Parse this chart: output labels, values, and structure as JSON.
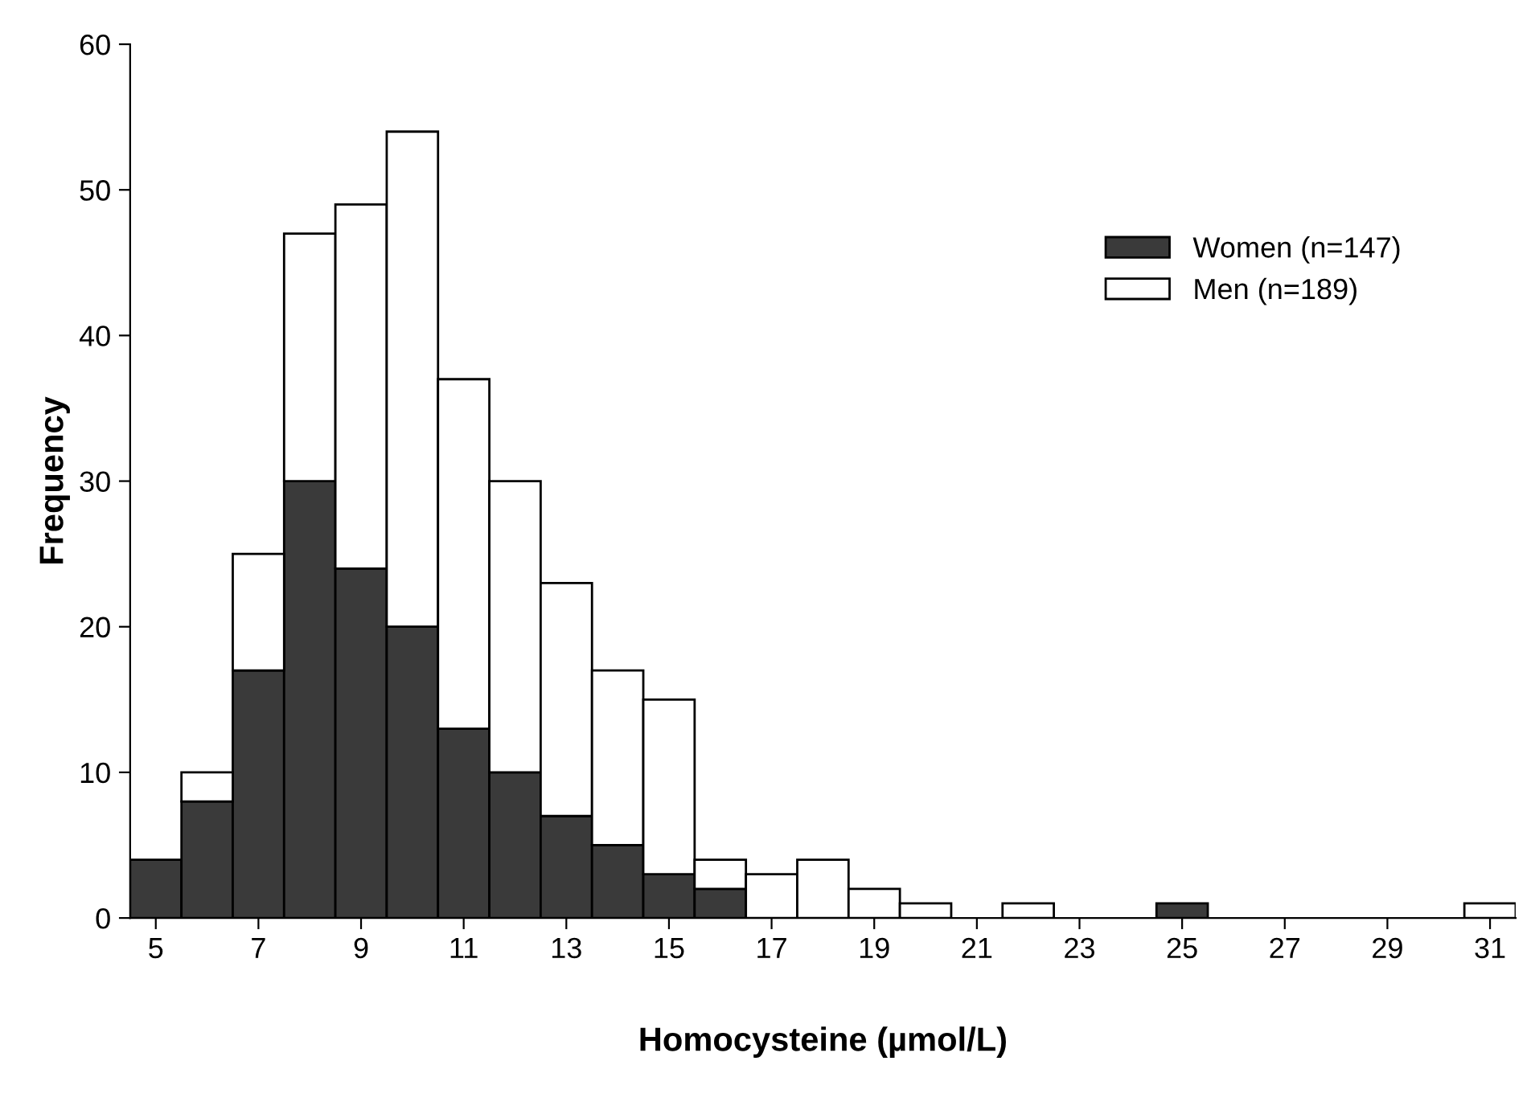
{
  "chart_data": {
    "type": "bar",
    "stacked": true,
    "xlabel": "Homocysteine (µmol/L)",
    "ylabel": "Frequency",
    "x": [
      5,
      6,
      7,
      8,
      9,
      10,
      11,
      12,
      13,
      14,
      15,
      16,
      17,
      18,
      19,
      20,
      21,
      22,
      23,
      24,
      25,
      26,
      27,
      28,
      29,
      30,
      31
    ],
    "series": [
      {
        "name": "Women (n=147)",
        "color": "#3a3a3a",
        "values": [
          4,
          8,
          17,
          30,
          24,
          20,
          13,
          10,
          7,
          5,
          3,
          2,
          0,
          0,
          0,
          0,
          0,
          0,
          0,
          0,
          1,
          0,
          0,
          0,
          0,
          0,
          0
        ]
      },
      {
        "name": "Men (n=189)",
        "color": "#ffffff",
        "values": [
          0,
          2,
          8,
          17,
          25,
          34,
          24,
          20,
          16,
          12,
          12,
          2,
          3,
          4,
          2,
          1,
          0,
          1,
          0,
          0,
          0,
          0,
          0,
          0,
          0,
          0,
          1
        ]
      }
    ],
    "xlim": [
      4.5,
      31.5
    ],
    "ylim": [
      0,
      60
    ],
    "xticks": [
      5,
      7,
      9,
      11,
      13,
      15,
      17,
      19,
      21,
      23,
      25,
      27,
      29,
      31
    ],
    "yticks": [
      0,
      10,
      20,
      30,
      40,
      50,
      60
    ],
    "legend": "top right"
  }
}
